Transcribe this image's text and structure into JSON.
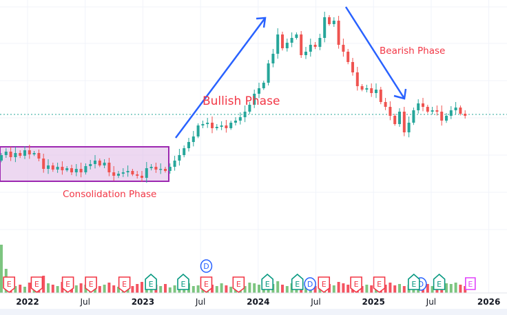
{
  "chart_data": {
    "type": "candlestick",
    "title": "",
    "xlabel": "",
    "ylabel": "",
    "x_ticks": [
      {
        "label": "2022",
        "date": 2022.0,
        "major": true
      },
      {
        "label": "Jul",
        "date": 2022.5,
        "major": false
      },
      {
        "label": "2023",
        "date": 2023.0,
        "major": true
      },
      {
        "label": "Jul",
        "date": 2023.5,
        "major": false
      },
      {
        "label": "2024",
        "date": 2024.0,
        "major": true
      },
      {
        "label": "Jul",
        "date": 2024.5,
        "major": false
      },
      {
        "label": "2025",
        "date": 2025.0,
        "major": true
      },
      {
        "label": "Jul",
        "date": 2025.5,
        "major": false
      },
      {
        "label": "2026",
        "date": 2026.0,
        "major": true
      }
    ],
    "grid": true,
    "reference_line_level": 82,
    "closes": [
      52.5,
      55,
      51,
      54,
      52,
      56,
      53,
      54,
      50,
      42.5,
      45,
      42,
      44,
      41.5,
      43,
      40,
      42.5,
      40,
      44.5,
      46,
      48.5,
      45,
      47,
      40,
      37.5,
      39,
      40,
      41,
      38.5,
      37.5,
      36,
      43,
      44,
      42,
      42.5,
      41,
      44,
      48.5,
      52.5,
      57.5,
      62,
      66,
      74,
      75,
      76,
      72,
      73,
      74,
      72,
      76,
      77.5,
      80,
      84,
      89,
      97,
      101,
      105,
      119,
      126,
      140,
      130,
      134,
      137.5,
      140,
      125,
      127.5,
      132.5,
      131,
      137.5,
      152.5,
      147.5,
      150,
      132.5,
      127.5,
      120,
      112.5,
      102.5,
      100,
      101,
      97.5,
      100,
      91,
      87.5,
      81,
      75,
      84,
      69,
      76,
      85,
      90,
      87.5,
      84,
      85,
      84,
      77.5,
      81,
      85,
      87,
      82.5,
      81
    ],
    "volume": [
      70,
      35,
      14,
      10,
      12,
      9,
      15,
      13,
      18,
      25,
      14,
      12,
      10,
      16,
      20,
      9,
      11,
      14,
      12,
      13,
      17,
      10,
      12,
      15,
      11,
      9,
      14,
      12,
      10,
      13,
      16,
      11,
      9,
      12,
      10,
      13,
      8,
      11,
      9,
      12,
      14,
      10,
      11,
      13,
      9,
      12,
      10,
      14,
      11,
      9,
      13,
      12,
      10,
      15,
      14,
      12,
      11,
      16,
      13,
      17,
      12,
      10,
      14,
      11,
      13,
      9,
      12,
      10,
      15,
      18,
      13,
      11,
      16,
      14,
      12,
      15,
      13,
      10,
      12,
      11,
      14,
      9,
      12,
      15,
      11,
      13,
      10,
      12,
      16,
      14,
      11,
      13,
      10,
      12,
      9,
      14,
      13,
      15,
      12,
      10
    ],
    "colors": {
      "up": "#26a69a",
      "down": "#ef5350",
      "volume_up": "#66bb6a",
      "volume_down": "#f23645",
      "reference_line": "#26a69a"
    },
    "annotations": {
      "consolidation": {
        "label": "Consolidation Phase",
        "fill": "#e1bee7",
        "border": "#9c27b0"
      },
      "bullish": {
        "label": "Bullish Phase",
        "arrow_color": "#2962ff"
      },
      "bearish": {
        "label": "Bearish Phase",
        "arrow_color": "#2962ff"
      }
    },
    "events": [
      {
        "type": "E",
        "date": 2021.84,
        "color": "#f23645"
      },
      {
        "type": "E",
        "date": 2022.08,
        "color": "#f23645"
      },
      {
        "type": "E",
        "date": 2022.35,
        "color": "#f23645"
      },
      {
        "type": "E",
        "date": 2022.55,
        "color": "#f23645"
      },
      {
        "type": "E",
        "date": 2022.84,
        "color": "#f23645"
      },
      {
        "type": "E",
        "date": 2023.07,
        "color": "#089981"
      },
      {
        "type": "E",
        "date": 2023.35,
        "color": "#089981"
      },
      {
        "type": "E",
        "date": 2023.55,
        "color": "#f23645"
      },
      {
        "type": "D",
        "date": 2023.55,
        "color": "#2962ff",
        "raised": true
      },
      {
        "type": "E",
        "date": 2023.83,
        "color": "#f23645"
      },
      {
        "type": "E",
        "date": 2024.08,
        "color": "#089981"
      },
      {
        "type": "E",
        "date": 2024.34,
        "color": "#089981"
      },
      {
        "type": "D",
        "date": 2024.45,
        "color": "#2962ff"
      },
      {
        "type": "E",
        "date": 2024.57,
        "color": "#f23645"
      },
      {
        "type": "E",
        "date": 2024.85,
        "color": "#f23645"
      },
      {
        "type": "E",
        "date": 2025.05,
        "color": "#f23645"
      },
      {
        "type": "D",
        "date": 2025.41,
        "color": "#2962ff"
      },
      {
        "type": "E",
        "date": 2025.35,
        "color": "#089981"
      },
      {
        "type": "E",
        "date": 2025.57,
        "color": "#089981"
      },
      {
        "type": "E",
        "date": 2025.84,
        "color": "#e040fb",
        "upcoming": true
      }
    ]
  }
}
